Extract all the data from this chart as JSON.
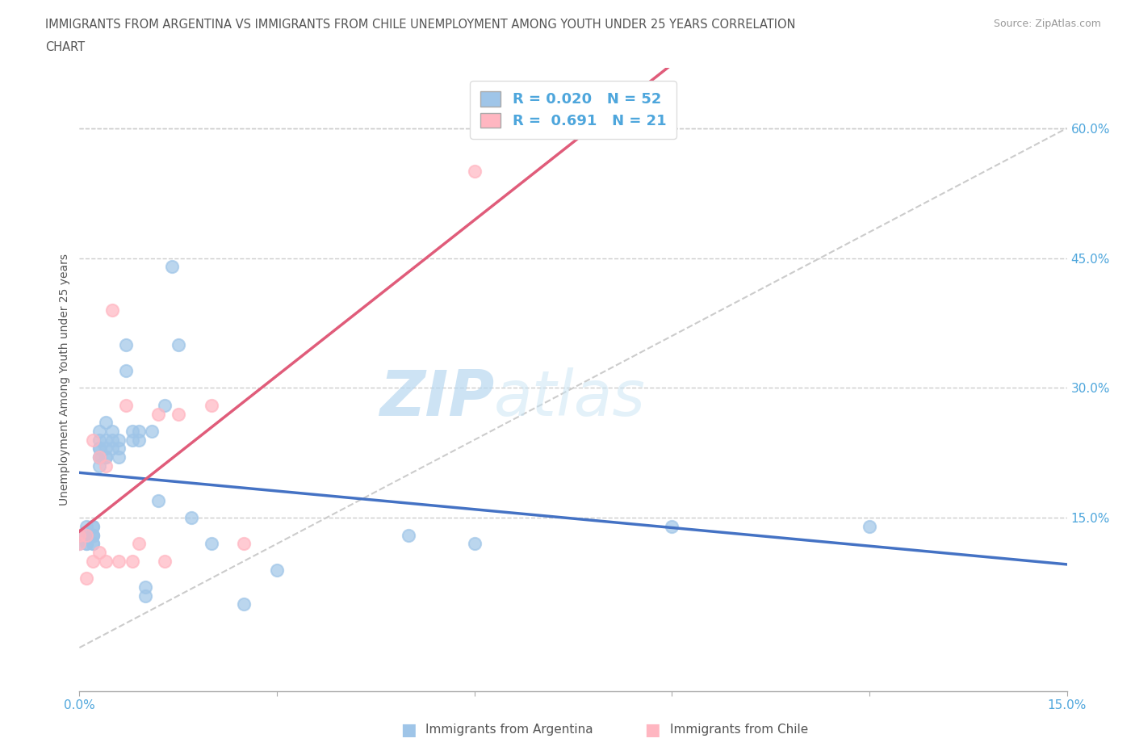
{
  "title_line1": "IMMIGRANTS FROM ARGENTINA VS IMMIGRANTS FROM CHILE UNEMPLOYMENT AMONG YOUTH UNDER 25 YEARS CORRELATION",
  "title_line2": "CHART",
  "source_text": "Source: ZipAtlas.com",
  "ylabel": "Unemployment Among Youth under 25 years",
  "xlim": [
    0.0,
    0.15
  ],
  "ylim": [
    -0.05,
    0.67
  ],
  "ytick_right_values": [
    0.15,
    0.3,
    0.45,
    0.6
  ],
  "ytick_right_labels": [
    "15.0%",
    "30.0%",
    "45.0%",
    "60.0%"
  ],
  "argentina_color": "#9FC5E8",
  "chile_color": "#FFB6C1",
  "argentina_line_color": "#4472C4",
  "chile_line_color": "#E05C7A",
  "R_argentina": 0.02,
  "N_argentina": 52,
  "R_chile": 0.691,
  "N_chile": 21,
  "argentina_scatter_x": [
    0.0,
    0.0,
    0.001,
    0.001,
    0.001,
    0.001,
    0.002,
    0.002,
    0.002,
    0.002,
    0.002,
    0.002,
    0.002,
    0.003,
    0.003,
    0.003,
    0.003,
    0.003,
    0.003,
    0.003,
    0.004,
    0.004,
    0.004,
    0.004,
    0.004,
    0.005,
    0.005,
    0.005,
    0.006,
    0.006,
    0.006,
    0.007,
    0.007,
    0.008,
    0.008,
    0.009,
    0.009,
    0.01,
    0.01,
    0.011,
    0.012,
    0.013,
    0.014,
    0.015,
    0.017,
    0.02,
    0.025,
    0.03,
    0.05,
    0.06,
    0.09,
    0.12
  ],
  "argentina_scatter_y": [
    0.13,
    0.12,
    0.12,
    0.13,
    0.14,
    0.12,
    0.13,
    0.12,
    0.14,
    0.13,
    0.12,
    0.14,
    0.13,
    0.21,
    0.22,
    0.23,
    0.22,
    0.23,
    0.24,
    0.25,
    0.22,
    0.23,
    0.24,
    0.22,
    0.26,
    0.23,
    0.24,
    0.25,
    0.22,
    0.24,
    0.23,
    0.32,
    0.35,
    0.24,
    0.25,
    0.24,
    0.25,
    0.07,
    0.06,
    0.25,
    0.17,
    0.28,
    0.44,
    0.35,
    0.15,
    0.12,
    0.05,
    0.09,
    0.13,
    0.12,
    0.14,
    0.14
  ],
  "chile_scatter_x": [
    0.0,
    0.0,
    0.001,
    0.001,
    0.002,
    0.002,
    0.003,
    0.003,
    0.004,
    0.004,
    0.005,
    0.006,
    0.007,
    0.008,
    0.009,
    0.012,
    0.013,
    0.015,
    0.02,
    0.025,
    0.06
  ],
  "chile_scatter_y": [
    0.12,
    0.13,
    0.08,
    0.13,
    0.24,
    0.1,
    0.22,
    0.11,
    0.21,
    0.1,
    0.39,
    0.1,
    0.28,
    0.1,
    0.12,
    0.27,
    0.1,
    0.27,
    0.28,
    0.12,
    0.55
  ],
  "watermark_zip": "ZIP",
  "watermark_atlas": "atlas",
  "legend_label_argentina": "Immigrants from Argentina",
  "legend_label_chile": "Immigrants from Chile",
  "background_color": "#FFFFFF",
  "grid_color": "#CCCCCC",
  "title_color": "#555555",
  "axis_label_color": "#555555",
  "right_tick_color": "#4EA6DC",
  "bottom_tick_color": "#4EA6DC",
  "legend_text_color": "#4EA6DC"
}
